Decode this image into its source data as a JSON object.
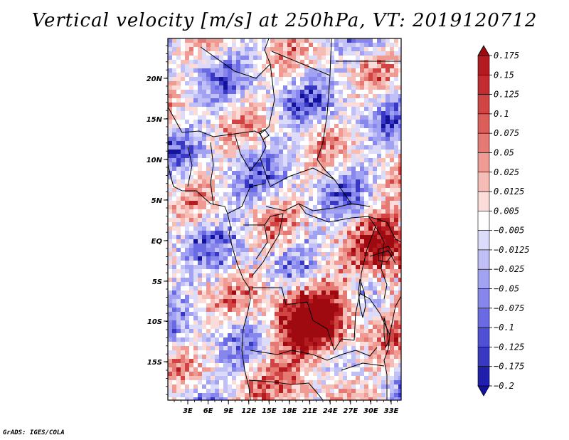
{
  "title": "Vertical velocity [m/s] at 250hPa, VT: 2019120712",
  "footer": "GrADS: IGES/COLA",
  "map": {
    "lat_labels": [
      "20N",
      "15N",
      "10N",
      "5N",
      "EQ",
      "5S",
      "10S",
      "15S"
    ],
    "lon_labels": [
      "3E",
      "6E",
      "9E",
      "12E",
      "15E",
      "18E",
      "21E",
      "24E",
      "27E",
      "30E",
      "33E"
    ]
  },
  "colorbar": {
    "labels": [
      "0.175",
      "0.15",
      "0.125",
      "0.1",
      "0.075",
      "0.05",
      "0.025",
      "0.0125",
      "0.005",
      "−0.005",
      "−0.0125",
      "−0.025",
      "−0.05",
      "−0.075",
      "−0.1",
      "−0.125",
      "−0.175",
      "−0.2"
    ],
    "colors": [
      "#9e0a10",
      "#b31b20",
      "#c22c30",
      "#d04444",
      "#db5e5a",
      "#e57a74",
      "#ef9a92",
      "#f6bcb6",
      "#fbdcd8",
      "#ffffff",
      "#dcdcfa",
      "#c0c0f6",
      "#a2a2f2",
      "#8686ec",
      "#6a6ae2",
      "#5050d4",
      "#3838c2",
      "#2020ac",
      "#12129a"
    ]
  }
}
